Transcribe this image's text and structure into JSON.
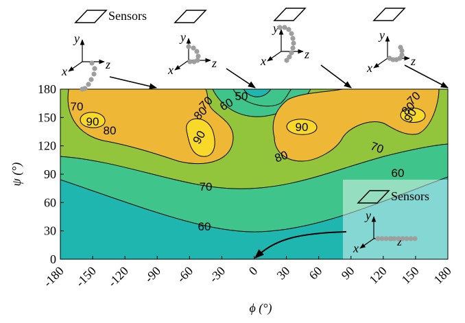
{
  "chart_data": {
    "type": "contour",
    "xlabel": "ϕ (°)",
    "ylabel": "ψ (°)",
    "xlim": [
      -180,
      180
    ],
    "ylim": [
      0,
      180
    ],
    "xticks": [
      -180,
      -150,
      -120,
      -90,
      -60,
      -30,
      0,
      30,
      60,
      90,
      120,
      150,
      180
    ],
    "yticks": [
      0,
      30,
      60,
      90,
      120,
      150,
      180
    ],
    "levels": [
      50,
      60,
      70,
      80,
      90
    ],
    "level_colors": [
      "#2b9bdc",
      "#1fb6b0",
      "#3fc48c",
      "#93c53c",
      "#eeb735",
      "#f8d92a"
    ],
    "insets": [
      {
        "sensor_label": "Sensors",
        "axes": [
          "x",
          "y",
          "z"
        ]
      },
      {
        "axes": [
          "x",
          "y",
          "z"
        ]
      },
      {
        "axes": [
          "x",
          "y",
          "z"
        ]
      },
      {
        "axes": [
          "x",
          "y",
          "z"
        ]
      },
      {
        "sensor_label": "Sensors",
        "axes": [
          "x",
          "y",
          "z"
        ]
      }
    ]
  }
}
